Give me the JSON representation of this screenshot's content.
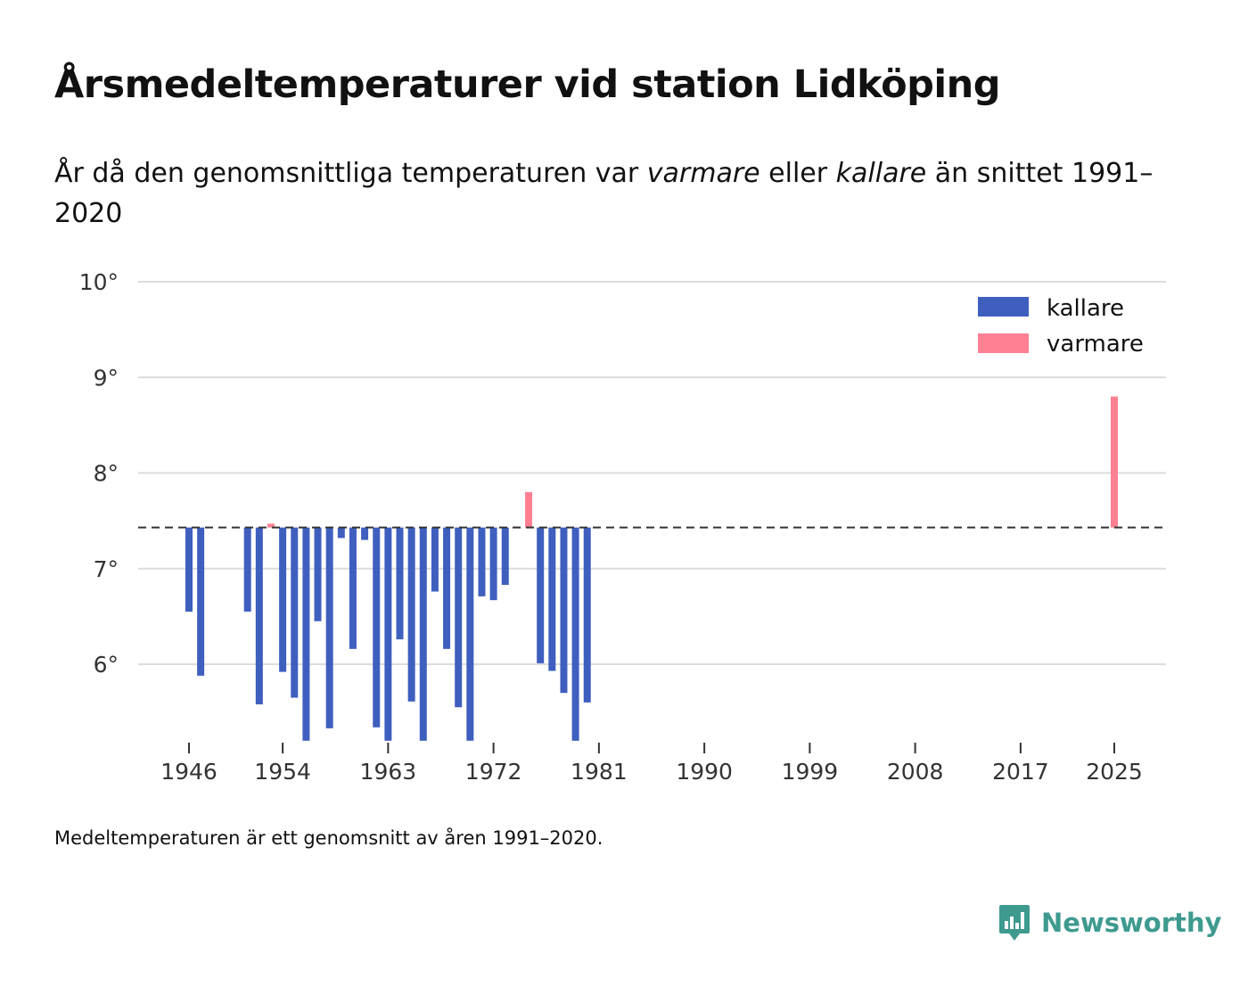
{
  "colors": {
    "cold": "#3f5fbf",
    "warm": "#fe8092",
    "grid": "#dcdcdc",
    "axis": "#333333",
    "brand": "#3e9a8f"
  },
  "chart_data": {
    "type": "bar",
    "title": "Årsmedeltemperaturer vid station Lidköping",
    "subtitle_parts": [
      "År då den genomsnittliga temperaturen var ",
      "varmare",
      " eller ",
      "kallare",
      " än snittet 1991–2020"
    ],
    "baseline": 7.43,
    "ylim": [
      5.2,
      10
    ],
    "yticks": [
      10,
      9,
      8,
      7,
      6
    ],
    "ytick_labels": [
      "10°",
      "9°",
      "8°",
      "7°",
      "6°"
    ],
    "xlim": [
      1939.5,
      2029.5
    ],
    "xticks": [
      1946,
      1954,
      1963,
      1972,
      1981,
      1990,
      1999,
      2008,
      2017,
      2025
    ],
    "xtick_labels": [
      "1946",
      "1954",
      "1963",
      "1972",
      "1981",
      "1990",
      "1999",
      "2008",
      "2017",
      "2025"
    ],
    "legend": {
      "position": "top-right",
      "entries": [
        {
          "key": "cold",
          "label": "kallare"
        },
        {
          "key": "warm",
          "label": "varmare"
        }
      ]
    },
    "years": [
      1946,
      1947,
      1951,
      1952,
      1953,
      1954,
      1955,
      1956,
      1957,
      1958,
      1959,
      1960,
      1961,
      1962,
      1963,
      1964,
      1965,
      1966,
      1967,
      1968,
      1969,
      1970,
      1971,
      1972,
      1973,
      1974,
      1975,
      1976,
      1977,
      1978,
      1979,
      1980,
      2025
    ],
    "values": [
      6.55,
      5.88,
      6.55,
      5.58,
      7.47,
      5.92,
      5.65,
      5.2,
      6.45,
      5.33,
      7.32,
      6.16,
      7.3,
      5.34,
      5.2,
      6.26,
      5.61,
      5.2,
      6.76,
      6.16,
      5.55,
      5.2,
      6.71,
      6.67,
      6.83,
      7.44,
      7.8,
      6.01,
      5.93,
      5.7,
      5.2,
      5.6,
      8.8
    ]
  },
  "footnote": "Medeltemperaturen är ett genomsnitt av åren 1991–2020.",
  "brand": {
    "name": "Newsworthy",
    "icon": "newsworthy-logo-icon"
  }
}
